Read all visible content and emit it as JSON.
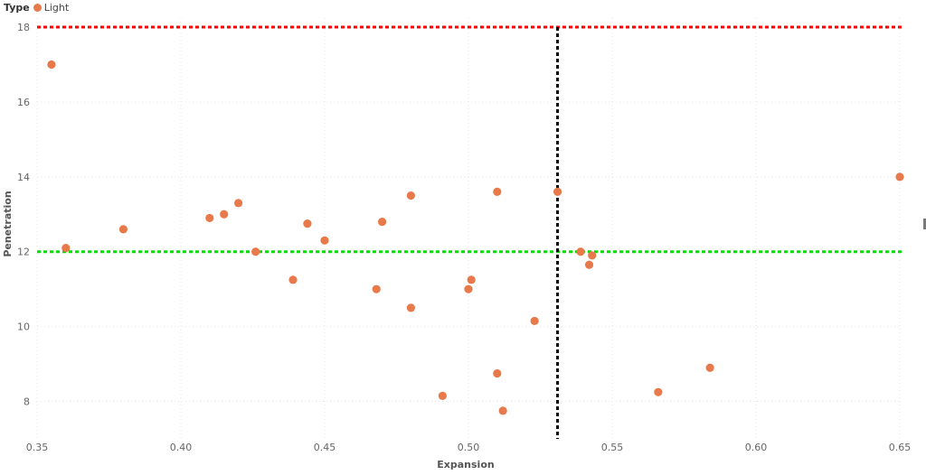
{
  "legend": {
    "title": "Type",
    "entries": [
      {
        "label": "Light",
        "color": "#E8794A"
      }
    ]
  },
  "chart_data": {
    "type": "scatter",
    "title": "",
    "xlabel": "Expansion",
    "ylabel": "Penetration",
    "xlim": [
      0.35,
      0.65
    ],
    "ylim": [
      7,
      18
    ],
    "x_ticks": [
      "0.35",
      "0.40",
      "0.45",
      "0.50",
      "0.55",
      "0.60",
      "0.65"
    ],
    "y_ticks": [
      "8",
      "10",
      "12",
      "14",
      "16",
      "18"
    ],
    "grid": true,
    "legend_position": "top-left",
    "series": [
      {
        "name": "Light",
        "color": "#E8794A",
        "points": [
          [
            0.355,
            17.0
          ],
          [
            0.36,
            12.1
          ],
          [
            0.38,
            12.6
          ],
          [
            0.41,
            12.9
          ],
          [
            0.415,
            13.0
          ],
          [
            0.42,
            13.3
          ],
          [
            0.426,
            12.0
          ],
          [
            0.439,
            11.25
          ],
          [
            0.444,
            12.75
          ],
          [
            0.45,
            12.3
          ],
          [
            0.468,
            11.0
          ],
          [
            0.47,
            12.8
          ],
          [
            0.48,
            13.5
          ],
          [
            0.48,
            10.5
          ],
          [
            0.491,
            8.15
          ],
          [
            0.5,
            11.0
          ],
          [
            0.501,
            11.25
          ],
          [
            0.51,
            13.6
          ],
          [
            0.51,
            8.75
          ],
          [
            0.512,
            7.75
          ],
          [
            0.523,
            10.15
          ],
          [
            0.531,
            13.6
          ],
          [
            0.539,
            12.0
          ],
          [
            0.542,
            11.65
          ],
          [
            0.543,
            11.9
          ],
          [
            0.566,
            8.25
          ],
          [
            0.584,
            8.9
          ],
          [
            0.65,
            14.0
          ]
        ]
      }
    ],
    "reference_lines": [
      {
        "orientation": "horizontal",
        "value": 18,
        "color": "#FF0000"
      },
      {
        "orientation": "horizontal",
        "value": 12,
        "color": "#00E000"
      },
      {
        "orientation": "vertical",
        "value": 0.531,
        "color": "#000000"
      }
    ]
  }
}
